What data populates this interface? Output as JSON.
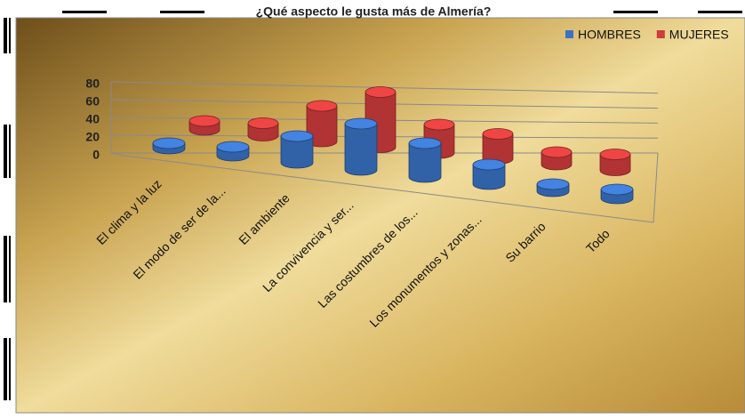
{
  "chart_data": {
    "type": "bar3d",
    "title": "¿Qué aspecto le gusta más de Almería?",
    "categories": [
      "El clima y la luz",
      "El modo de ser de la...",
      "El ambiente",
      "La convivencia y ser...",
      "Las costumbres de los...",
      "Los monumentos y zonas...",
      "Su barrio",
      "Todo"
    ],
    "series": [
      {
        "name": "HOMBRES",
        "color": "#3a72c4",
        "values": [
          6,
          10,
          30,
          52,
          38,
          22,
          8,
          10
        ]
      },
      {
        "name": "MUJERES",
        "color": "#d03c3c",
        "values": [
          10,
          14,
          40,
          62,
          32,
          28,
          14,
          18
        ]
      }
    ],
    "ylim": [
      0,
      80
    ],
    "yticks": [
      0,
      20,
      40,
      60,
      80
    ],
    "grid": true,
    "legend": "top-right"
  }
}
